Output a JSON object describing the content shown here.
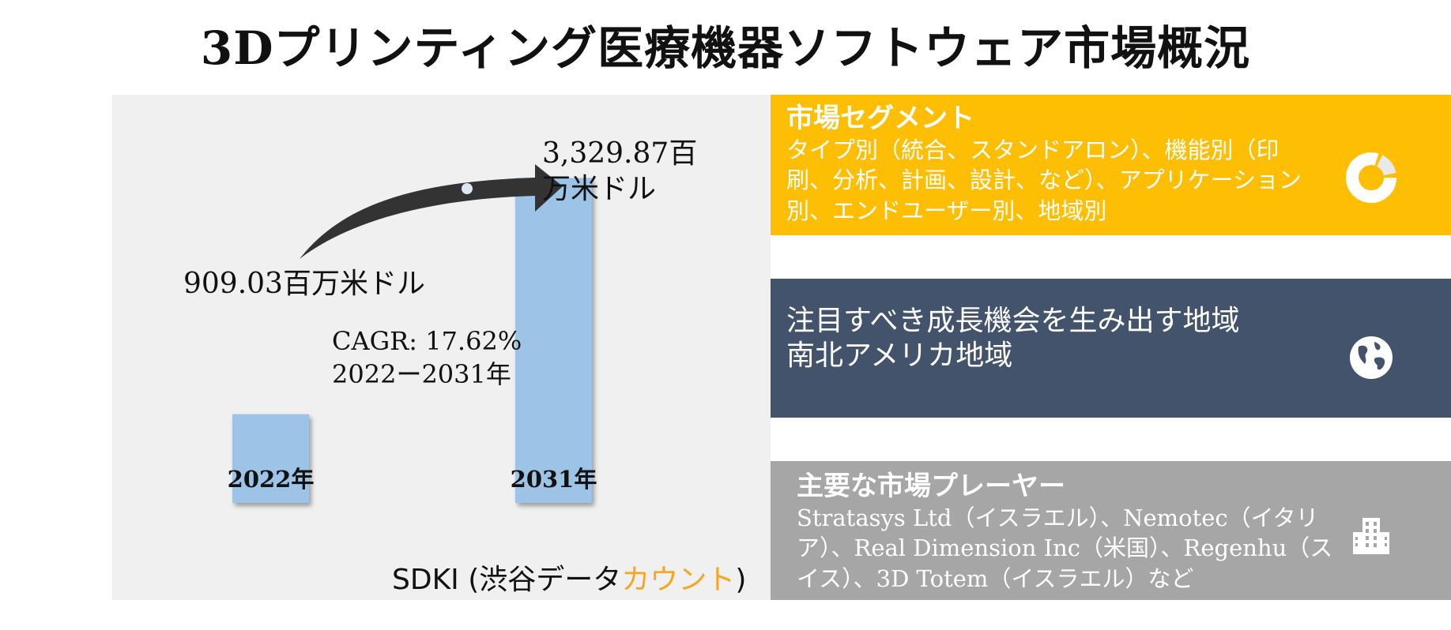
{
  "title": "3Dプリンティング医療機器ソフトウェア市場概況",
  "chart_data": {
    "type": "bar",
    "categories": [
      "2022年",
      "2031年"
    ],
    "values": [
      909.03,
      3329.87
    ],
    "value_labels": [
      "909.03百万米ドル",
      "3,329.87百万米ドル"
    ],
    "cagr_label": "CAGR: 17.62%",
    "cagr_period": "2022ー2031年",
    "bar_color": "#9dc3e6",
    "arrow_color": "#333333",
    "ylim": [
      0,
      3600
    ]
  },
  "brand": {
    "main": "SDKI (渋谷データ",
    "accent": "カウント",
    "close": ")"
  },
  "segments": {
    "heading": "市場セグメント",
    "body": "タイプ別（統合、スタンドアロン）、機能別（印刷、分析、計画、設計、など）、アプリケーション別、エンドユーザー別、地域別",
    "color": "#fdbe03",
    "icon": "donut-chart-icon"
  },
  "regions": {
    "heading": "注目すべき成長機会を生み出す地域",
    "body": "南北アメリカ地域",
    "color": "#43536b",
    "icon": "globe-icon"
  },
  "players": {
    "heading": "主要な市場プレーヤー",
    "body": "Stratasys Ltd（イスラエル）、Nemotec（イタリア）、Real Dimension Inc（米国）、Regenhu（スイス）、3D Totem（イスラエル）など",
    "color": "#a6a6a6",
    "icon": "buildings-icon"
  }
}
